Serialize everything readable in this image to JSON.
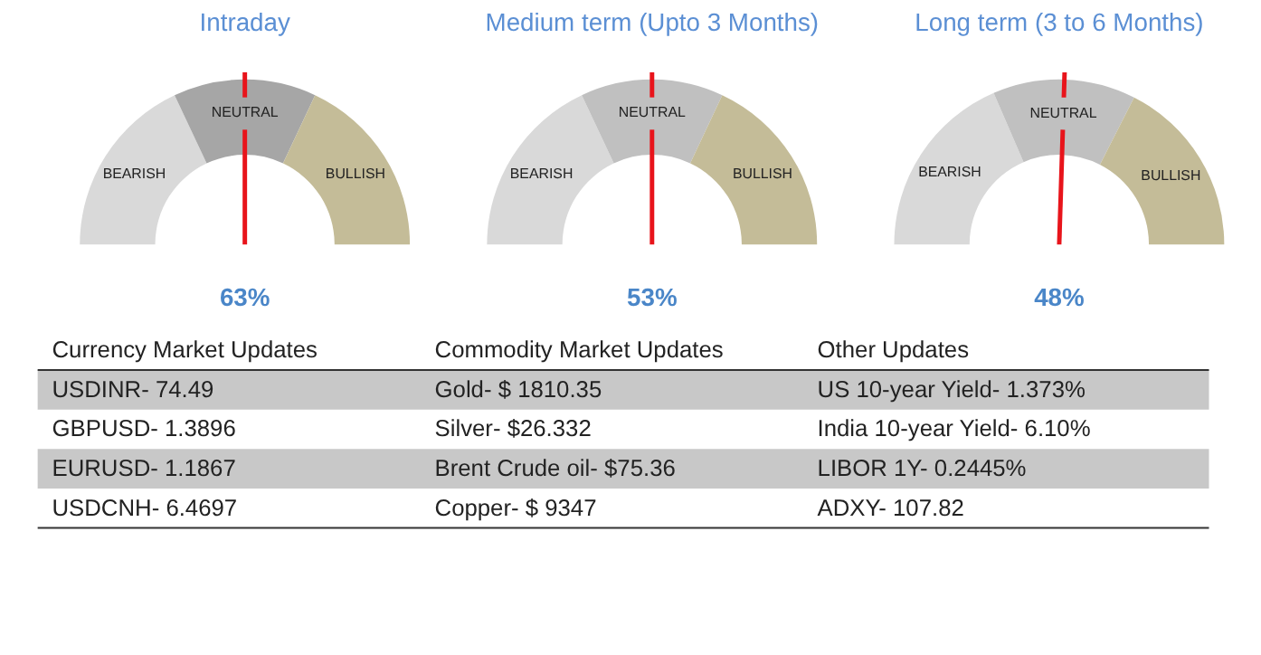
{
  "chart_data": [
    {
      "type": "donut",
      "title": "Intraday",
      "categories": [
        "BEARISH",
        "NEUTRAL",
        "BULLISH"
      ],
      "values": [
        36,
        28,
        36
      ],
      "colors": [
        "#d9d9d9",
        "#a6a6a6",
        "#c4bc98"
      ],
      "needle": "NEUTRAL",
      "annotations": [
        "63%"
      ]
    },
    {
      "type": "donut",
      "title": "Medium term (Upto 3 Months)",
      "categories": [
        "BEARISH",
        "NEUTRAL",
        "BULLISH"
      ],
      "values": [
        36,
        28,
        36
      ],
      "colors": [
        "#d9d9d9",
        "#c0c0c0",
        "#c4bc98"
      ],
      "needle": "NEUTRAL",
      "annotations": [
        "53%"
      ]
    },
    {
      "type": "donut",
      "title": "Long term (3 to 6 Months)",
      "categories": [
        "BEARISH",
        "NEUTRAL",
        "BULLISH"
      ],
      "values": [
        37,
        28,
        35
      ],
      "colors": [
        "#d9d9d9",
        "#c0c0c0",
        "#c4bc98"
      ],
      "needle": "NEUTRAL",
      "annotations": [
        "48%"
      ]
    },
    {
      "type": "other",
      "annotations": [
        "Currency Market Updates",
        "Commodity Market Updates",
        "Other Updates",
        "USDINR- 74.49",
        "Gold- $ 1810.35",
        "US 10-year Yield- 1.373%",
        "GBPUSD- 1.3896",
        "Silver- $26.332",
        "India 10-year Yield- 6.10%",
        "EURUSD- 1.1867",
        "Brent Crude oil- $75.36",
        "LIBOR 1Y- 0.2445%",
        "USDCNH- 6.4697",
        "Copper- $ 9347",
        "ADXY- 107.82"
      ]
    }
  ]
}
